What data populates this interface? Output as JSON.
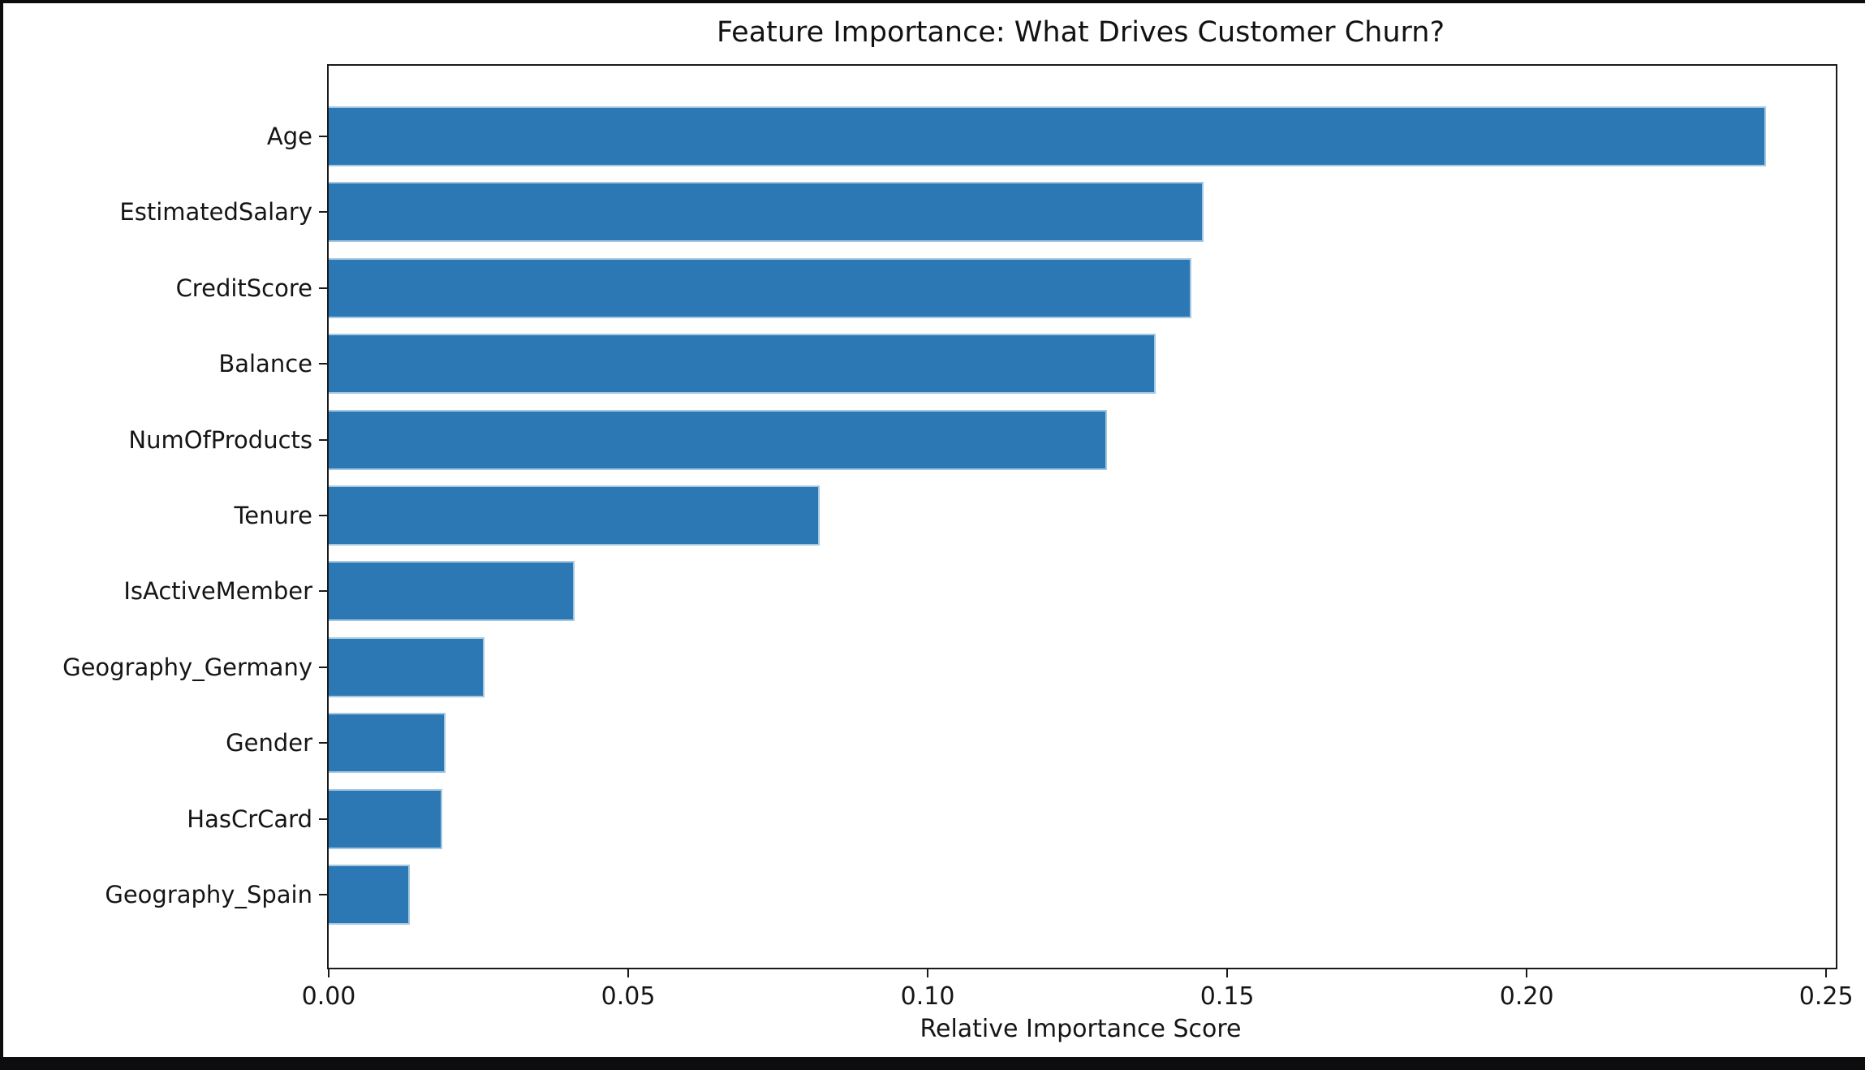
{
  "chart_data": {
    "type": "bar",
    "orientation": "horizontal",
    "title": "Feature Importance: What Drives Customer Churn?",
    "xlabel": "Relative Importance Score",
    "ylabel": "",
    "categories": [
      "Age",
      "EstimatedSalary",
      "CreditScore",
      "Balance",
      "NumOfProducts",
      "Tenure",
      "IsActiveMember",
      "Geography_Germany",
      "Gender",
      "HasCrCard",
      "Geography_Spain"
    ],
    "values": [
      0.24,
      0.146,
      0.144,
      0.138,
      0.13,
      0.082,
      0.041,
      0.026,
      0.0195,
      0.019,
      0.0135
    ],
    "x_ticks": [
      {
        "value": 0.0,
        "label": "0.00"
      },
      {
        "value": 0.05,
        "label": "0.05"
      },
      {
        "value": 0.1,
        "label": "0.10"
      },
      {
        "value": 0.15,
        "label": "0.15"
      },
      {
        "value": 0.2,
        "label": "0.20"
      },
      {
        "value": 0.25,
        "label": "0.25"
      }
    ],
    "xlim": [
      0,
      0.2516
    ],
    "grid": false,
    "legend": "none",
    "bar_color": "#2b78b5",
    "bar_edge_color": "#a5c8e1",
    "spine_color": "#1a1a1a",
    "background_color": "#ffffff",
    "frame_color": "#0d0d0f"
  }
}
